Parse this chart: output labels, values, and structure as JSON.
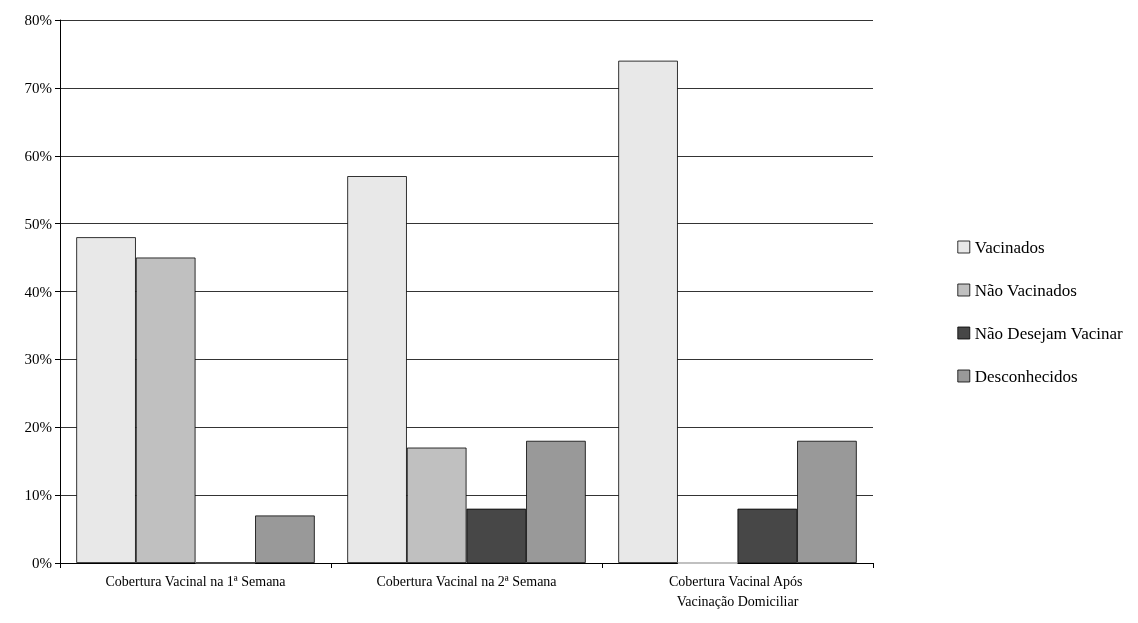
{
  "chart_data": {
    "type": "bar",
    "categories": [
      "Cobertura Vacinal na 1ª Semana",
      "Cobertura Vacinal na 2ª Semana",
      "Cobertura Vacinal Após Vacinação Domiciliar"
    ],
    "series": [
      {
        "name": "Vacinados",
        "color": "#e8e8e8",
        "values": [
          48,
          57,
          74
        ]
      },
      {
        "name": "Não Vacinados",
        "color": "#c0c0c0",
        "values": [
          45,
          17,
          0
        ]
      },
      {
        "name": "Não Desejam Vacinar",
        "color": "#474747",
        "values": [
          0,
          8,
          8
        ]
      },
      {
        "name": "Desconhecidos",
        "color": "#999999",
        "values": [
          7,
          18,
          18
        ]
      }
    ],
    "ylim": [
      0,
      80
    ],
    "yticks": [
      {
        "value": 0,
        "label": "0%"
      },
      {
        "value": 10,
        "label": "10%"
      },
      {
        "value": 20,
        "label": "20%"
      },
      {
        "value": 30,
        "label": "30%"
      },
      {
        "value": 40,
        "label": "40%"
      },
      {
        "value": 50,
        "label": "50%"
      },
      {
        "value": 60,
        "label": "60%"
      },
      {
        "value": 70,
        "label": "70%"
      },
      {
        "value": 80,
        "label": "80%"
      }
    ],
    "grid": "y",
    "legend": "right"
  }
}
